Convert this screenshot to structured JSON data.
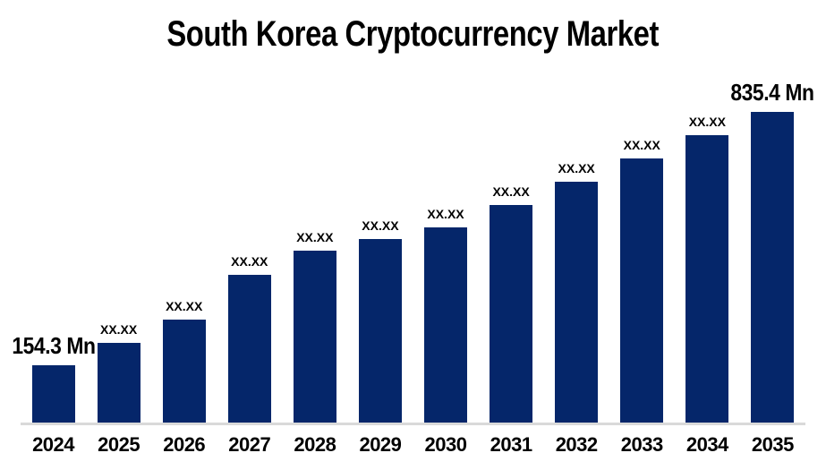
{
  "chart_data": {
    "type": "bar",
    "title": "South Korea Cryptocurrency Market",
    "categories": [
      "2024",
      "2025",
      "2026",
      "2027",
      "2028",
      "2029",
      "2030",
      "2031",
      "2032",
      "2033",
      "2034",
      "2035"
    ],
    "values": [
      154.3,
      214.3,
      276.9,
      397.3,
      462.3,
      493.6,
      524.9,
      585.1,
      647.7,
      710.3,
      772.9,
      835.4
    ],
    "labels": [
      "154.3 Mn",
      "XX.XX",
      "XX.XX",
      "XX.XX",
      "XX.XX",
      "XX.XX",
      "XX.XX",
      "XX.XX",
      "XX.XX",
      "XX.XX",
      "XX.XX",
      "835.4 Mn"
    ],
    "unit": "Mn",
    "emphasized_label_indices": [
      0,
      11
    ],
    "xlabel": "",
    "ylabel": "",
    "y_axis_visible": false,
    "x_axis_line_visible": true,
    "grid": false,
    "legend": "none",
    "ylim": [
      0,
      870
    ],
    "colors": {
      "bar": "#05266A",
      "axis_line": "#D9D9D9",
      "text": "#000000",
      "background": "#FFFFFF"
    }
  }
}
